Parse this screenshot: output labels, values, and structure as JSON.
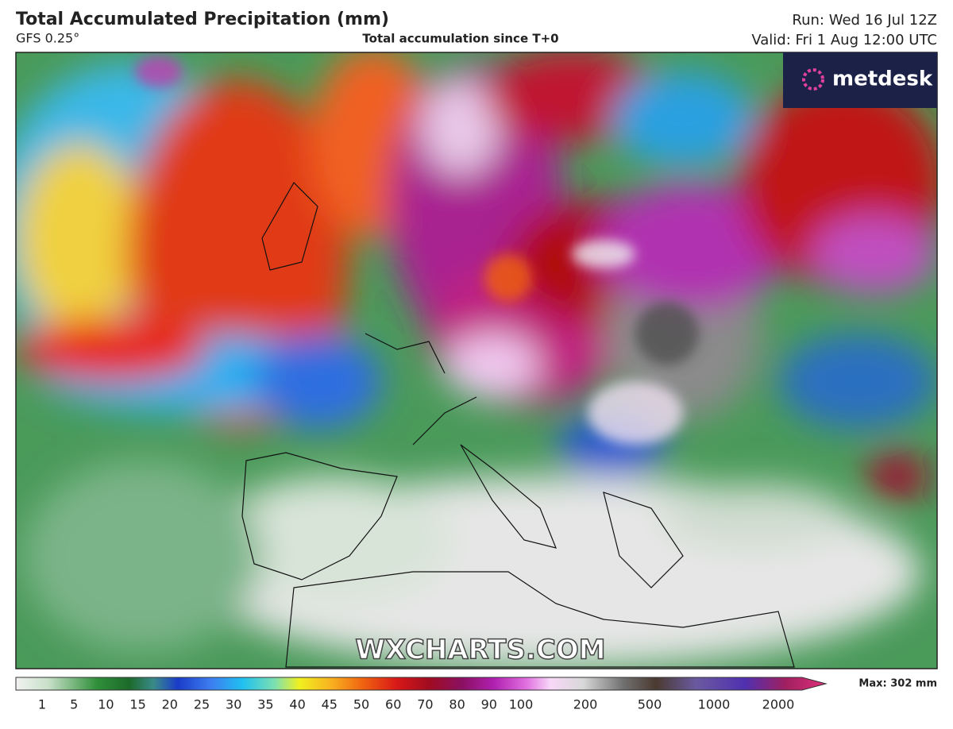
{
  "header": {
    "title": "Total Accumulated Precipitation (mm)",
    "model": "GFS 0.25°",
    "subtitle": "Total accumulation since T+0",
    "run": "Run: Wed 16 Jul 12Z",
    "valid": "Valid: Fri 1 Aug 12:00 UTC"
  },
  "logo": "metdesk",
  "watermark": "WXCHARTS.COM",
  "legend": {
    "ticks": [
      "1",
      "5",
      "10",
      "15",
      "20",
      "25",
      "30",
      "35",
      "40",
      "45",
      "50",
      "60",
      "70",
      "80",
      "90",
      "100",
      "200",
      "500",
      "1000",
      "2000"
    ],
    "max": "Max: 302 mm"
  }
}
